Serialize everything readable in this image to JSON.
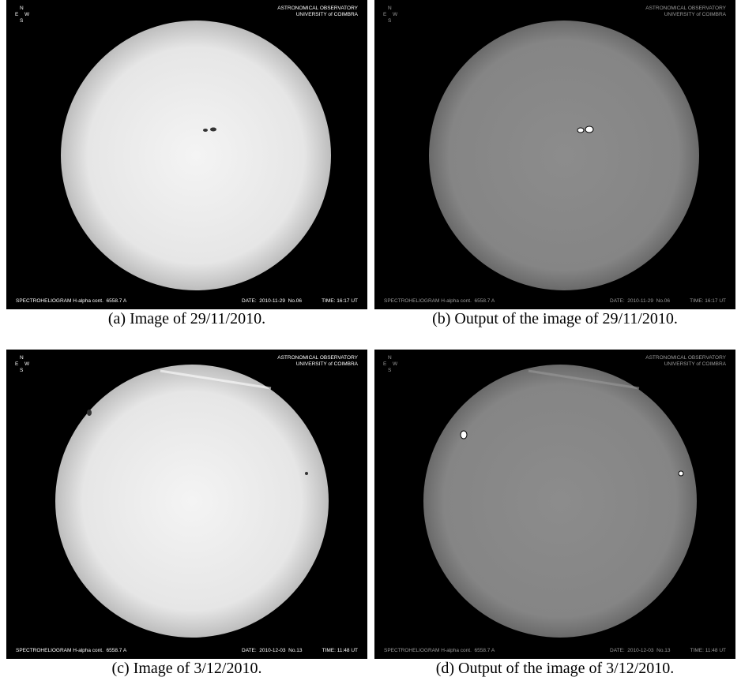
{
  "panels": [
    {
      "compass": {
        "n": "N",
        "e": "E",
        "w": "W",
        "s": "S"
      },
      "observatory": [
        "ASTRONOMICAL OBSERVATORY",
        "UNIVERSITY of COIMBRA"
      ],
      "instrument": "SPECTROHELIOGRAM H-alpha cont.  6558.7 A",
      "date": "DATE:  2010-11-29  No.06",
      "time": "TIME: 16:17 UT",
      "caption": "(a) Image of 29/11/2010."
    },
    {
      "compass": {
        "n": "N",
        "e": "E",
        "w": "W",
        "s": "S"
      },
      "observatory": [
        "ASTRONOMICAL OBSERVATORY",
        "UNIVERSITY of COIMBRA"
      ],
      "instrument": "SPECTROHELIOGRAM H-alpha cont.  6558.7 A",
      "date": "DATE:  2010-11-29  No.06",
      "time": "TIME: 16:17 UT",
      "caption": "(b) Output of the image of 29/11/2010."
    },
    {
      "compass": {
        "n": "N",
        "e": "E",
        "w": "W",
        "s": "S"
      },
      "observatory": [
        "ASTRONOMICAL OBSERVATORY",
        "UNIVERSITY of COIMBRA"
      ],
      "instrument": "SPECTROHELIOGRAM H-alpha cont.  6558.7 A",
      "date": "DATE:  2010-12-03  No.13",
      "time": "TIME: 11:48 UT",
      "caption": "(c) Image of 3/12/2010."
    },
    {
      "compass": {
        "n": "N",
        "e": "E",
        "w": "W",
        "s": "S"
      },
      "observatory": [
        "ASTRONOMICAL OBSERVATORY",
        "UNIVERSITY of COIMBRA"
      ],
      "instrument": "SPECTROHELIOGRAM H-alpha cont.  6558.7 A",
      "date": "DATE:  2010-12-03  No.13",
      "time": "TIME: 11:48 UT",
      "caption": "(d) Output of the image of 3/12/2010."
    }
  ]
}
